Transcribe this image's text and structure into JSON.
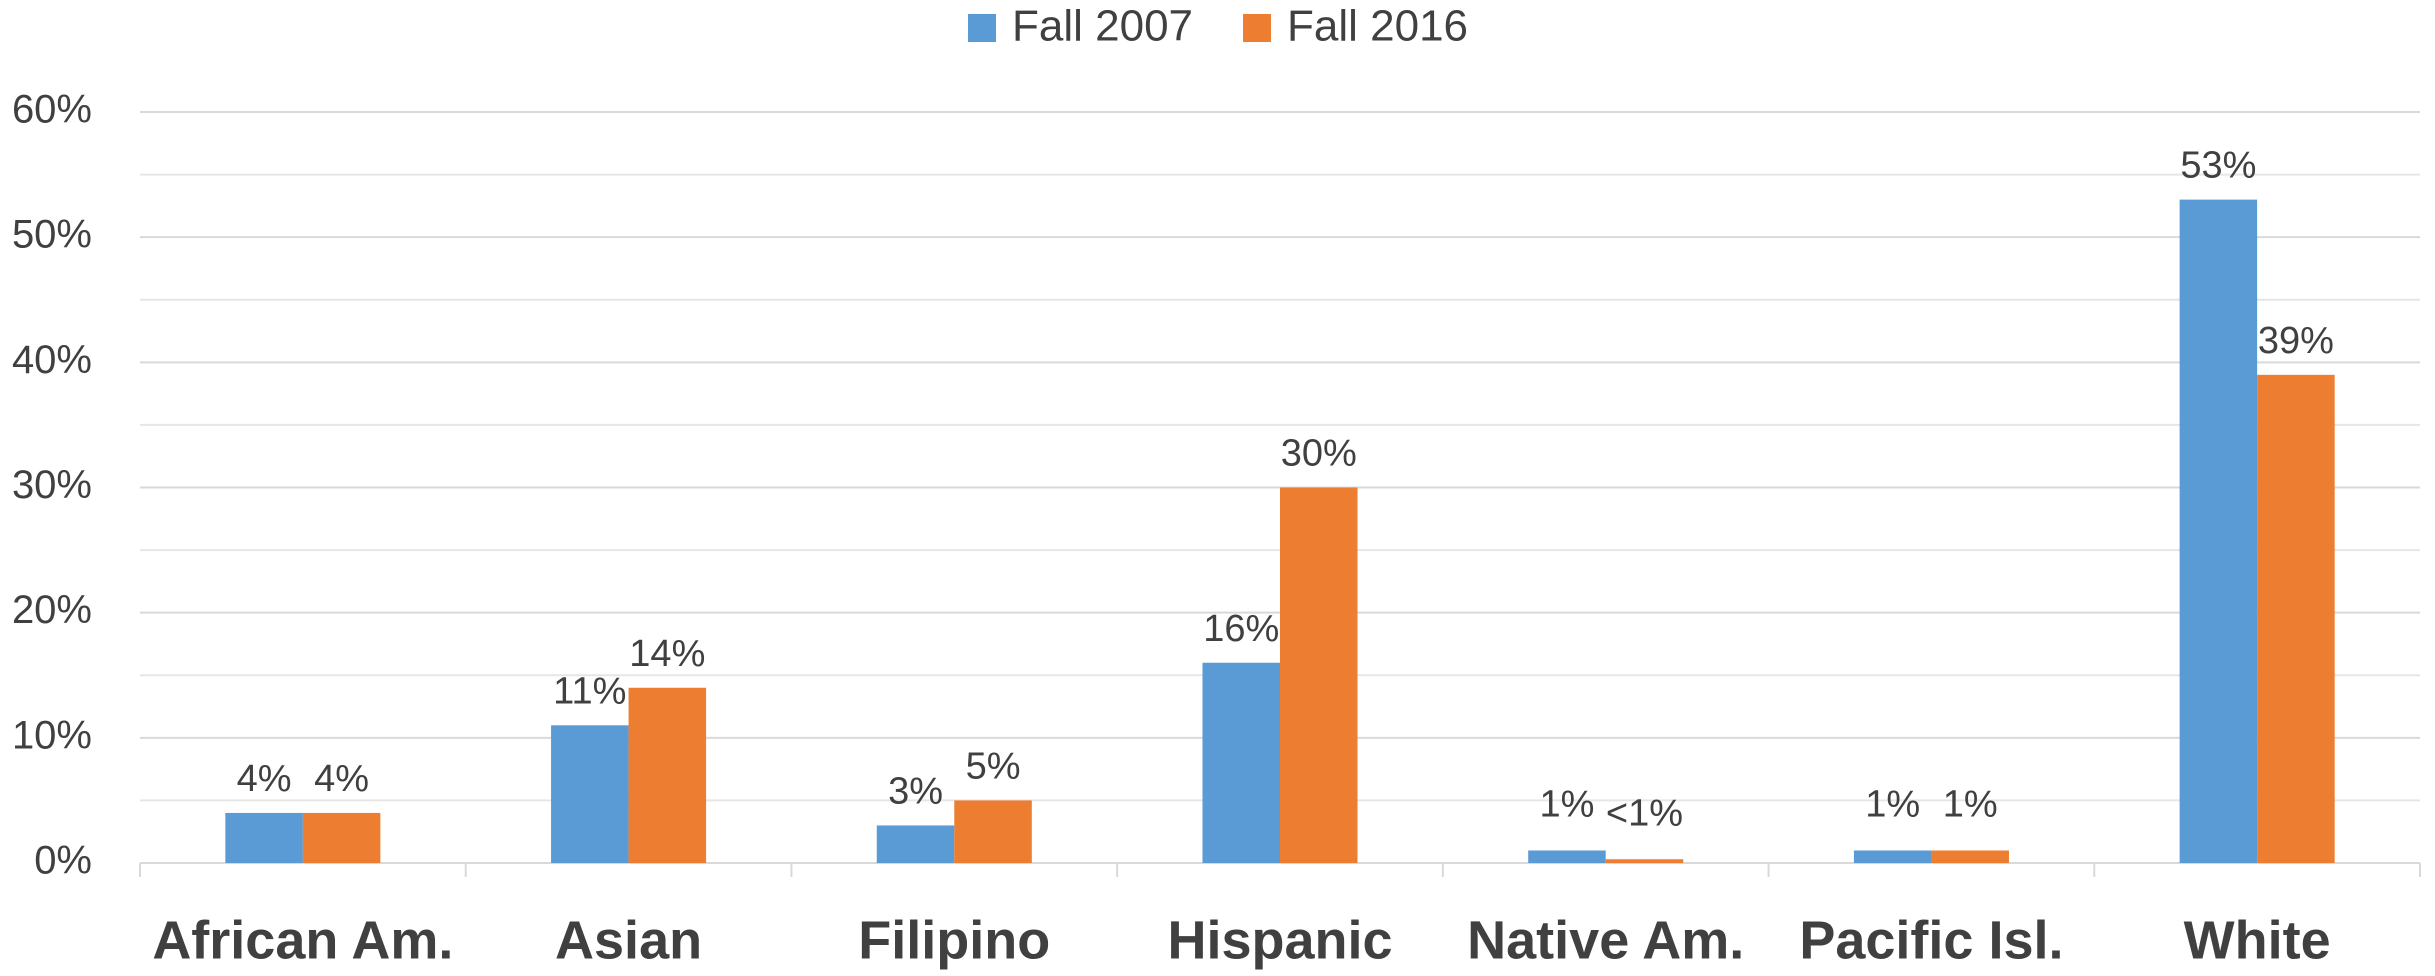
{
  "chart_data": {
    "type": "bar",
    "categories": [
      "African Am.",
      "Asian",
      "Filipino",
      "Hispanic",
      "Native Am.",
      "Pacific Isl.",
      "White"
    ],
    "series": [
      {
        "name": "Fall 2007",
        "color": "#5b9bd5",
        "values": [
          4,
          11,
          3,
          16,
          1,
          1,
          53
        ],
        "value_labels": [
          "4%",
          "11%",
          "3%",
          "16%",
          "1%",
          "1%",
          "53%"
        ]
      },
      {
        "name": "Fall 2016",
        "color": "#ed7d31",
        "values": [
          4,
          14,
          5,
          30,
          0.3,
          1,
          39
        ],
        "value_labels": [
          "4%",
          "14%",
          "5%",
          "30%",
          "<1%",
          "1%",
          "39%"
        ]
      }
    ],
    "ylim": [
      0,
      60
    ],
    "yticks": [
      {
        "value": 0,
        "label": "0%"
      },
      {
        "value": 10,
        "label": "10%"
      },
      {
        "value": 20,
        "label": "20%"
      },
      {
        "value": 30,
        "label": "30%"
      },
      {
        "value": 40,
        "label": "40%"
      },
      {
        "value": 50,
        "label": "50%"
      },
      {
        "value": 60,
        "label": "60%"
      }
    ],
    "yminor": [
      5,
      15,
      25,
      35,
      45,
      55
    ],
    "grid": true,
    "legend": "top"
  }
}
